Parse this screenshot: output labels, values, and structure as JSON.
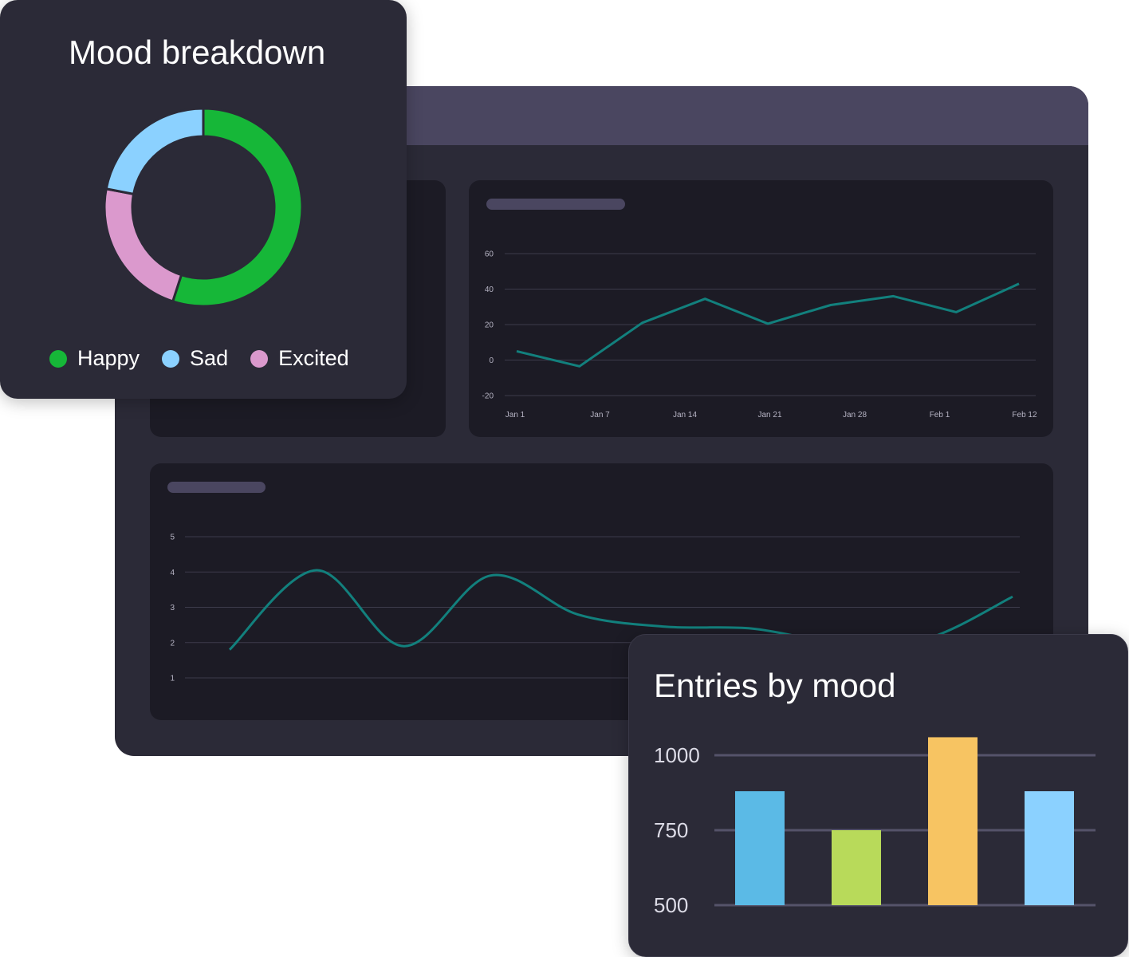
{
  "colors": {
    "line": "#12807d",
    "grid": "#3c3b4b",
    "happy": "#16b738",
    "sad": "#8bd1ff",
    "excited": "#db99cd"
  },
  "mood_card": {
    "title": "Mood breakdown",
    "legend": [
      {
        "label": "Happy",
        "color": "#16b738"
      },
      {
        "label": "Sad",
        "color": "#8bd1ff"
      },
      {
        "label": "Excited",
        "color": "#db99cd"
      }
    ]
  },
  "entries_card": {
    "title": "Entries by mood"
  },
  "chart_data": [
    {
      "type": "pie",
      "title": "Mood breakdown",
      "categories": [
        "Happy",
        "Excited",
        "Sad"
      ],
      "values": [
        55,
        23,
        22
      ],
      "colors": [
        "#16b738",
        "#db99cd",
        "#8bd1ff"
      ],
      "legend": "bottom"
    },
    {
      "type": "line",
      "categories": [
        "Jan 1",
        "Jan 7",
        "Jan 14",
        "Jan 21",
        "Jan 28",
        "Feb 1",
        "Feb 12"
      ],
      "x": [
        0,
        1,
        2,
        3,
        4,
        5,
        6,
        7,
        8
      ],
      "values": [
        5,
        -3.5,
        21,
        34.5,
        20.5,
        31,
        36,
        27,
        43
      ],
      "y_ticks": [
        -20,
        0,
        20,
        40,
        60
      ],
      "ylim": [
        -20,
        60
      ],
      "grid": true
    },
    {
      "type": "line",
      "smooth": true,
      "x": [
        0,
        1,
        2,
        3,
        4,
        5,
        6,
        7,
        8,
        9
      ],
      "values": [
        1.8,
        4.05,
        1.9,
        3.9,
        2.8,
        2.45,
        2.4,
        2.0,
        2.1,
        3.3
      ],
      "y_ticks": [
        1,
        2,
        3,
        4,
        5
      ],
      "ylim": [
        1,
        5
      ],
      "grid": true
    },
    {
      "type": "bar",
      "title": "Entries by mood",
      "categories": [
        "",
        "",
        "",
        ""
      ],
      "values": [
        880,
        750,
        1060,
        880
      ],
      "colors": [
        "#5bbae6",
        "#b8da5a",
        "#f7c462",
        "#8bd1ff"
      ],
      "y_ticks": [
        500,
        750,
        1000
      ],
      "ylim": [
        500,
        1060
      ],
      "grid": true
    }
  ]
}
